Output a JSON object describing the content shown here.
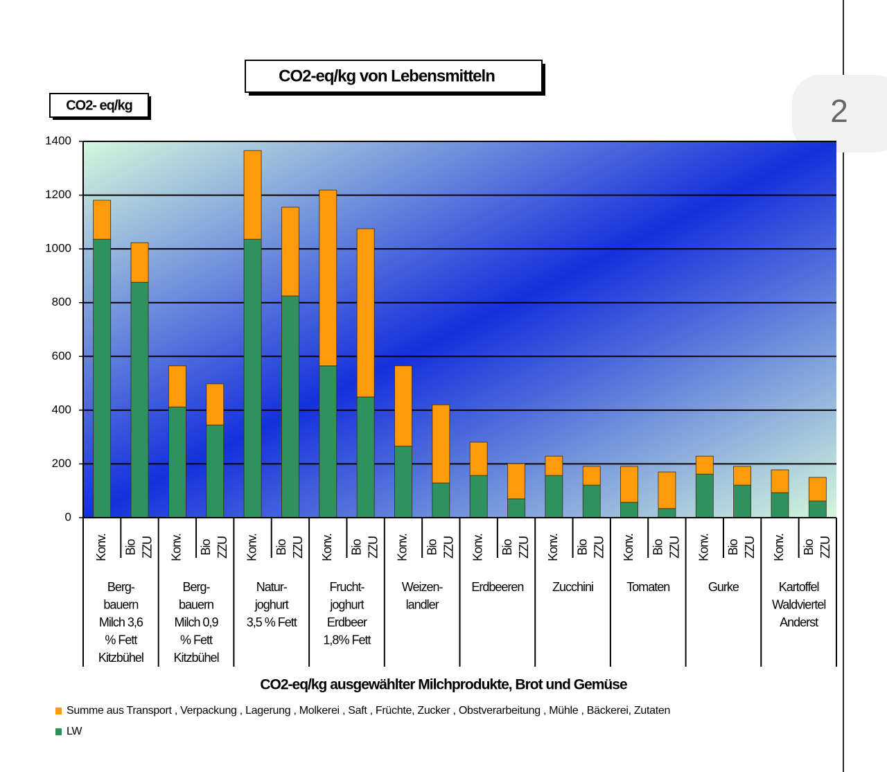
{
  "page_number": "2",
  "chart_data": {
    "type": "stacked_bar",
    "title": "CO2-eq/kg von Lebensmitteln",
    "y_label": "CO2- eq/kg",
    "x_label": "CO2-eq/kg ausgewählter Milchprodukte, Brot und Gemüse",
    "categories": [
      "Konv.",
      "Bio ZZU",
      "Konv.",
      "Bio ZZU",
      "Konv.",
      "Bio ZZU",
      "Konv.",
      "Bio ZZU",
      "Konv.",
      "Bio ZZU",
      "Konv.",
      "Bio ZZU",
      "Konv.",
      "Bio ZZU",
      "Konv.",
      "Bio ZZU",
      "Konv.",
      "Bio ZZU",
      "Konv.",
      "Bio ZZU"
    ],
    "groups": [
      [
        "Berg-",
        "bauern",
        "Milch 3,6",
        "% Fett",
        "Kitzbühel"
      ],
      [
        "Berg-",
        "bauern",
        "Milch 0,9",
        "% Fett",
        "Kitzbühel"
      ],
      [
        "Natur-",
        "joghurt",
        "3,5 % Fett"
      ],
      [
        "Frucht-",
        "joghurt",
        "Erdbeer",
        "1,8% Fett"
      ],
      [
        "Weizen-",
        "landler"
      ],
      [
        "Erdbeeren"
      ],
      [
        "Zucchini"
      ],
      [
        "Tomaten"
      ],
      [
        "Gurke"
      ],
      [
        "Kartoffel",
        "Waldviertel",
        "Anderst"
      ]
    ],
    "series": [
      {
        "name": "Summe aus Transport , Verpackung , Lagerung , Molkerei , Saft , Früchte, Zucker , Obstverarbeitung , Mühle , Bäckerei, Zutaten",
        "color": "#ff9a0a",
        "values": [
          145,
          147,
          153,
          153,
          330,
          330,
          654,
          626,
          299,
          291,
          124,
          131,
          72,
          70,
          134,
          136,
          67,
          70,
          85,
          88
        ]
      },
      {
        "name": "LW",
        "color": "#2f9160",
        "values": [
          1036,
          876,
          412,
          345,
          1036,
          825,
          565,
          449,
          266,
          129,
          157,
          70,
          157,
          121,
          57,
          34,
          162,
          121,
          93,
          62
        ]
      }
    ],
    "ylim": [
      0,
      1400
    ],
    "yticks": [
      0,
      200,
      400,
      600,
      800,
      1000,
      1200,
      1400
    ],
    "grid": true
  }
}
